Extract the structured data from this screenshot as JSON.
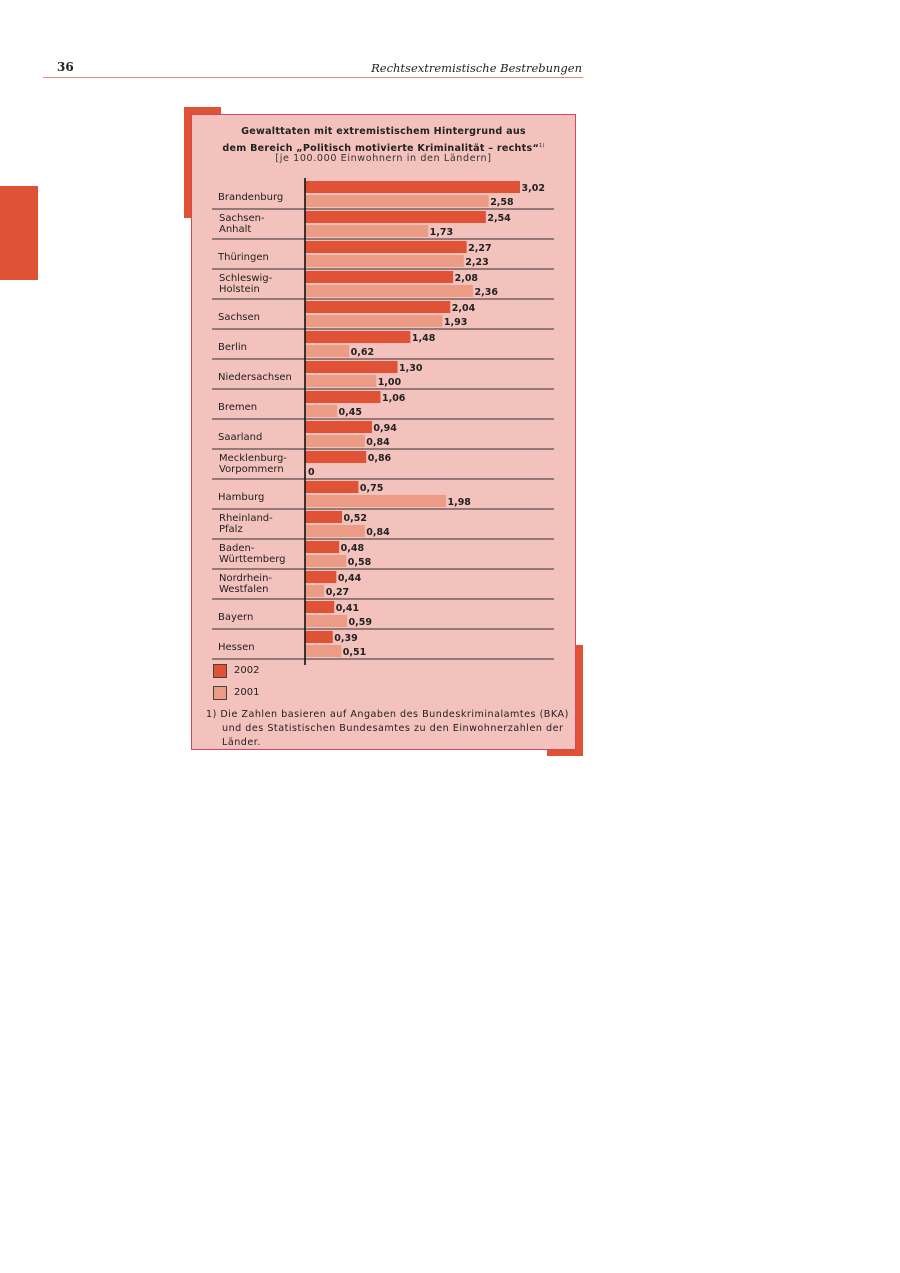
{
  "header": {
    "page_number": "36",
    "running_title": "Rechtsextremistische Bestrebungen"
  },
  "colors": {
    "bar_2002": "#e05236",
    "bar_2001": "#ec9c84",
    "panel_background": "#f3c2bd",
    "accent": "#e05236"
  },
  "chart_data": {
    "type": "bar",
    "orientation": "horizontal",
    "title_line1": "Gewalttaten mit extremistischem Hintergrund aus",
    "title_line2": "dem Bereich „Politisch motivierte Kriminalität – rechts“",
    "title_footnote_mark": "1)",
    "subtitle": "[je 100.000 Einwohnern in den Ländern]",
    "categories": [
      [
        "Brandenburg"
      ],
      [
        "Sachsen-",
        "Anhalt"
      ],
      [
        "Thüringen"
      ],
      [
        "Schleswig-",
        "Holstein"
      ],
      [
        "Sachsen"
      ],
      [
        "Berlin"
      ],
      [
        "Niedersachsen"
      ],
      [
        "Bremen"
      ],
      [
        "Saarland"
      ],
      [
        "Mecklenburg-",
        "Vorpommern"
      ],
      [
        "Hamburg"
      ],
      [
        "Rheinland-",
        "Pfalz"
      ],
      [
        "Baden-",
        "Württemberg"
      ],
      [
        "Nordrhein-",
        "Westfalen"
      ],
      [
        "Bayern"
      ],
      [
        "Hessen"
      ]
    ],
    "series": [
      {
        "name": "2002",
        "values": [
          3.02,
          2.54,
          2.27,
          2.08,
          2.04,
          1.48,
          1.3,
          1.06,
          0.94,
          0.86,
          0.75,
          0.52,
          0.48,
          0.44,
          0.41,
          0.39
        ],
        "labels": [
          "3,02",
          "2,54",
          "2,27",
          "2,08",
          "2,04",
          "1,48",
          "1,30",
          "1,06",
          "0,94",
          "0,86",
          "0,75",
          "0,52",
          "0,48",
          "0,44",
          "0,41",
          "0,39"
        ]
      },
      {
        "name": "2001",
        "values": [
          2.58,
          1.73,
          2.23,
          2.36,
          1.93,
          0.62,
          1.0,
          0.45,
          0.84,
          0,
          1.98,
          0.84,
          0.58,
          0.27,
          0.59,
          0.51
        ],
        "labels": [
          "2,58",
          "1,73",
          "2,23",
          "2,36",
          "1,93",
          "0,62",
          "1,00",
          "0,45",
          "0,84",
          "0",
          "1,98",
          "0,84",
          "0,58",
          "0,27",
          "0,59",
          "0,51"
        ]
      }
    ],
    "xlim": [
      0,
      3.5
    ],
    "legend_position": "bottom-left",
    "grid": false,
    "footnote": "1) Die Zahlen basieren auf Angaben des Bundeskriminalamtes (BKA) und des Statistischen Bundesamtes zu den Einwohnerzahlen der Länder."
  }
}
